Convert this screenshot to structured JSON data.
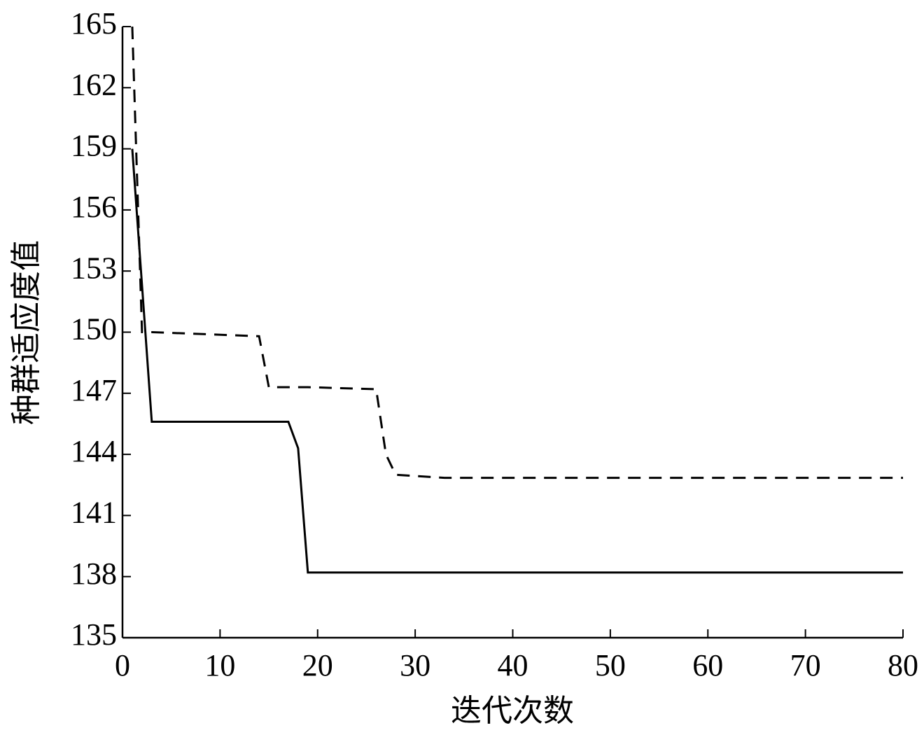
{
  "chart_data": {
    "type": "line",
    "x_label": "迭代次数",
    "y_label": "种群适应度值",
    "x": [
      1,
      2,
      3,
      14,
      15,
      17,
      18,
      19,
      26,
      27,
      28,
      33,
      80
    ],
    "series": [
      {
        "color": "#000000",
        "dash": false,
        "values": [
          159,
          152.3,
          145.6,
          145.6,
          145.6,
          145.6,
          144.3,
          138.2,
          138.2,
          138.2,
          138.2,
          138.2,
          138.2
        ]
      },
      {
        "color": "#000000",
        "dash": true,
        "values": [
          165,
          150,
          150,
          149.8,
          147.3,
          147.3,
          147.3,
          147.3,
          147.2,
          144,
          143,
          142.85,
          142.85
        ]
      }
    ],
    "xlim": [
      0,
      80
    ],
    "xticks": [
      0,
      10,
      20,
      30,
      40,
      50,
      60,
      70,
      80
    ],
    "ylim": [
      135,
      165
    ],
    "yticks": [
      135,
      138,
      141,
      144,
      147,
      150,
      153,
      156,
      159,
      162,
      165
    ]
  }
}
